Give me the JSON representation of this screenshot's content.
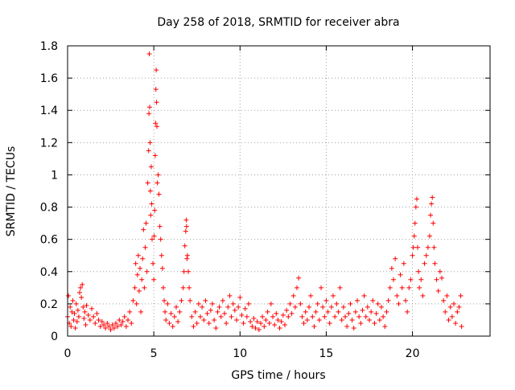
{
  "chart_data": {
    "type": "scatter",
    "title": "Day 258 of 2018, SRMTID for receiver abra",
    "xlabel": "GPS time / hours",
    "ylabel": "SRMTID / TECUs",
    "xlim": [
      0,
      24.5
    ],
    "ylim": [
      0,
      1.8
    ],
    "xticks": [
      0,
      5,
      10,
      15,
      20
    ],
    "xtick_labels": [
      "0",
      "5",
      "10",
      "15",
      "20"
    ],
    "yticks": [
      0,
      0.2,
      0.4,
      0.6,
      0.8,
      1.0,
      1.2,
      1.4,
      1.6,
      1.8
    ],
    "ytick_labels": [
      "0",
      "0.2",
      "0.4",
      "0.6",
      "0.8",
      "1",
      "1.2",
      "1.4",
      "1.6",
      "1.8"
    ],
    "grid": true,
    "marker": "+",
    "series": [
      {
        "name": "SRMTID",
        "color": "#ff0000",
        "points": [
          [
            0.0,
            0.12
          ],
          [
            0.05,
            0.25
          ],
          [
            0.1,
            0.08
          ],
          [
            0.15,
            0.18
          ],
          [
            0.2,
            0.06
          ],
          [
            0.25,
            0.15
          ],
          [
            0.3,
            0.22
          ],
          [
            0.35,
            0.1
          ],
          [
            0.4,
            0.14
          ],
          [
            0.45,
            0.05
          ],
          [
            0.5,
            0.2
          ],
          [
            0.55,
            0.09
          ],
          [
            0.6,
            0.16
          ],
          [
            0.65,
            0.12
          ],
          [
            0.7,
            0.27
          ],
          [
            0.75,
            0.3
          ],
          [
            0.8,
            0.24
          ],
          [
            0.85,
            0.32
          ],
          [
            0.9,
            0.18
          ],
          [
            0.95,
            0.11
          ],
          [
            1.0,
            0.15
          ],
          [
            1.05,
            0.07
          ],
          [
            1.1,
            0.19
          ],
          [
            1.2,
            0.13
          ],
          [
            1.3,
            0.1
          ],
          [
            1.4,
            0.17
          ],
          [
            1.5,
            0.12
          ],
          [
            1.6,
            0.08
          ],
          [
            1.7,
            0.14
          ],
          [
            1.8,
            0.1
          ],
          [
            1.9,
            0.06
          ],
          [
            2.0,
            0.09
          ],
          [
            2.1,
            0.07
          ],
          [
            2.2,
            0.05
          ],
          [
            2.3,
            0.08
          ],
          [
            2.4,
            0.06
          ],
          [
            2.5,
            0.04
          ],
          [
            2.6,
            0.07
          ],
          [
            2.7,
            0.05
          ],
          [
            2.8,
            0.08
          ],
          [
            2.9,
            0.06
          ],
          [
            3.0,
            0.1
          ],
          [
            3.1,
            0.07
          ],
          [
            3.2,
            0.09
          ],
          [
            3.3,
            0.12
          ],
          [
            3.4,
            0.06
          ],
          [
            3.5,
            0.1
          ],
          [
            3.6,
            0.15
          ],
          [
            3.7,
            0.08
          ],
          [
            3.8,
            0.22
          ],
          [
            3.9,
            0.3
          ],
          [
            3.95,
            0.45
          ],
          [
            4.0,
            0.2
          ],
          [
            4.05,
            0.38
          ],
          [
            4.1,
            0.5
          ],
          [
            4.15,
            0.28
          ],
          [
            4.2,
            0.42
          ],
          [
            4.25,
            0.15
          ],
          [
            4.3,
            0.35
          ],
          [
            4.35,
            0.48
          ],
          [
            4.4,
            0.66
          ],
          [
            4.45,
            0.3
          ],
          [
            4.5,
            0.55
          ],
          [
            4.55,
            0.7
          ],
          [
            4.6,
            0.4
          ],
          [
            4.65,
            0.95
          ],
          [
            4.7,
            1.15
          ],
          [
            4.72,
            1.38
          ],
          [
            4.74,
            1.75
          ],
          [
            4.76,
            1.42
          ],
          [
            4.78,
            1.2
          ],
          [
            4.8,
            0.9
          ],
          [
            4.82,
            0.75
          ],
          [
            4.85,
            1.05
          ],
          [
            4.88,
            0.82
          ],
          [
            4.9,
            0.6
          ],
          [
            4.95,
            0.45
          ],
          [
            5.0,
            0.35
          ],
          [
            5.02,
            0.62
          ],
          [
            5.05,
            0.78
          ],
          [
            5.08,
            1.12
          ],
          [
            5.1,
            1.32
          ],
          [
            5.12,
            1.53
          ],
          [
            5.14,
            1.65
          ],
          [
            5.16,
            1.45
          ],
          [
            5.18,
            1.3
          ],
          [
            5.2,
            0.95
          ],
          [
            5.25,
            1.0
          ],
          [
            5.3,
            0.88
          ],
          [
            5.35,
            0.68
          ],
          [
            5.4,
            0.6
          ],
          [
            5.45,
            0.5
          ],
          [
            5.5,
            0.42
          ],
          [
            5.55,
            0.3
          ],
          [
            5.6,
            0.22
          ],
          [
            5.65,
            0.15
          ],
          [
            5.7,
            0.1
          ],
          [
            5.8,
            0.2
          ],
          [
            5.9,
            0.08
          ],
          [
            6.0,
            0.14
          ],
          [
            6.1,
            0.06
          ],
          [
            6.2,
            0.12
          ],
          [
            6.3,
            0.18
          ],
          [
            6.4,
            0.09
          ],
          [
            6.5,
            0.15
          ],
          [
            6.6,
            0.22
          ],
          [
            6.7,
            0.3
          ],
          [
            6.75,
            0.4
          ],
          [
            6.8,
            0.56
          ],
          [
            6.85,
            0.65
          ],
          [
            6.88,
            0.72
          ],
          [
            6.9,
            0.68
          ],
          [
            6.92,
            0.48
          ],
          [
            6.95,
            0.5
          ],
          [
            7.0,
            0.4
          ],
          [
            7.05,
            0.3
          ],
          [
            7.1,
            0.22
          ],
          [
            7.2,
            0.12
          ],
          [
            7.3,
            0.06
          ],
          [
            7.4,
            0.15
          ],
          [
            7.5,
            0.08
          ],
          [
            7.6,
            0.2
          ],
          [
            7.7,
            0.12
          ],
          [
            7.8,
            0.18
          ],
          [
            7.9,
            0.1
          ],
          [
            8.0,
            0.22
          ],
          [
            8.1,
            0.14
          ],
          [
            8.2,
            0.08
          ],
          [
            8.3,
            0.16
          ],
          [
            8.4,
            0.2
          ],
          [
            8.5,
            0.1
          ],
          [
            8.6,
            0.05
          ],
          [
            8.7,
            0.15
          ],
          [
            8.8,
            0.18
          ],
          [
            8.9,
            0.12
          ],
          [
            9.0,
            0.22
          ],
          [
            9.1,
            0.14
          ],
          [
            9.2,
            0.08
          ],
          [
            9.3,
            0.18
          ],
          [
            9.4,
            0.25
          ],
          [
            9.5,
            0.12
          ],
          [
            9.6,
            0.2
          ],
          [
            9.7,
            0.16
          ],
          [
            9.8,
            0.1
          ],
          [
            9.9,
            0.18
          ],
          [
            10.0,
            0.24
          ],
          [
            10.1,
            0.13
          ],
          [
            10.2,
            0.08
          ],
          [
            10.3,
            0.17
          ],
          [
            10.4,
            0.12
          ],
          [
            10.5,
            0.2
          ],
          [
            10.6,
            0.09
          ],
          [
            10.7,
            0.06
          ],
          [
            10.8,
            0.11
          ],
          [
            10.9,
            0.05
          ],
          [
            11.0,
            0.09
          ],
          [
            11.1,
            0.04
          ],
          [
            11.2,
            0.08
          ],
          [
            11.3,
            0.12
          ],
          [
            11.4,
            0.06
          ],
          [
            11.5,
            0.1
          ],
          [
            11.6,
            0.15
          ],
          [
            11.7,
            0.08
          ],
          [
            11.8,
            0.2
          ],
          [
            11.9,
            0.12
          ],
          [
            12.0,
            0.07
          ],
          [
            12.1,
            0.14
          ],
          [
            12.2,
            0.1
          ],
          [
            12.3,
            0.05
          ],
          [
            12.4,
            0.09
          ],
          [
            12.5,
            0.13
          ],
          [
            12.6,
            0.07
          ],
          [
            12.7,
            0.16
          ],
          [
            12.8,
            0.12
          ],
          [
            12.9,
            0.2
          ],
          [
            13.0,
            0.14
          ],
          [
            13.1,
            0.25
          ],
          [
            13.2,
            0.18
          ],
          [
            13.3,
            0.3
          ],
          [
            13.4,
            0.36
          ],
          [
            13.5,
            0.2
          ],
          [
            13.6,
            0.12
          ],
          [
            13.7,
            0.08
          ],
          [
            13.8,
            0.15
          ],
          [
            13.9,
            0.1
          ],
          [
            14.0,
            0.18
          ],
          [
            14.1,
            0.25
          ],
          [
            14.2,
            0.12
          ],
          [
            14.3,
            0.06
          ],
          [
            14.4,
            0.15
          ],
          [
            14.5,
            0.2
          ],
          [
            14.6,
            0.1
          ],
          [
            14.7,
            0.3
          ],
          [
            14.8,
            0.18
          ],
          [
            14.9,
            0.12
          ],
          [
            15.0,
            0.22
          ],
          [
            15.1,
            0.15
          ],
          [
            15.2,
            0.08
          ],
          [
            15.3,
            0.18
          ],
          [
            15.4,
            0.25
          ],
          [
            15.5,
            0.12
          ],
          [
            15.6,
            0.2
          ],
          [
            15.7,
            0.15
          ],
          [
            15.8,
            0.3
          ],
          [
            15.9,
            0.1
          ],
          [
            16.0,
            0.18
          ],
          [
            16.1,
            0.12
          ],
          [
            16.2,
            0.06
          ],
          [
            16.3,
            0.14
          ],
          [
            16.4,
            0.2
          ],
          [
            16.5,
            0.1
          ],
          [
            16.6,
            0.05
          ],
          [
            16.7,
            0.15
          ],
          [
            16.8,
            0.22
          ],
          [
            16.9,
            0.12
          ],
          [
            17.0,
            0.08
          ],
          [
            17.1,
            0.16
          ],
          [
            17.2,
            0.25
          ],
          [
            17.3,
            0.12
          ],
          [
            17.4,
            0.18
          ],
          [
            17.5,
            0.1
          ],
          [
            17.6,
            0.15
          ],
          [
            17.7,
            0.22
          ],
          [
            17.8,
            0.08
          ],
          [
            17.9,
            0.14
          ],
          [
            18.0,
            0.2
          ],
          [
            18.1,
            0.1
          ],
          [
            18.2,
            0.18
          ],
          [
            18.3,
            0.12
          ],
          [
            18.4,
            0.06
          ],
          [
            18.5,
            0.15
          ],
          [
            18.6,
            0.22
          ],
          [
            18.7,
            0.3
          ],
          [
            18.8,
            0.42
          ],
          [
            18.9,
            0.35
          ],
          [
            19.0,
            0.48
          ],
          [
            19.1,
            0.25
          ],
          [
            19.2,
            0.2
          ],
          [
            19.3,
            0.38
          ],
          [
            19.4,
            0.3
          ],
          [
            19.5,
            0.45
          ],
          [
            19.6,
            0.22
          ],
          [
            19.7,
            0.15
          ],
          [
            19.8,
            0.3
          ],
          [
            19.9,
            0.35
          ],
          [
            20.0,
            0.5
          ],
          [
            20.05,
            0.55
          ],
          [
            20.1,
            0.62
          ],
          [
            20.15,
            0.7
          ],
          [
            20.2,
            0.8
          ],
          [
            20.25,
            0.85
          ],
          [
            20.3,
            0.55
          ],
          [
            20.35,
            0.4
          ],
          [
            20.4,
            0.3
          ],
          [
            20.5,
            0.35
          ],
          [
            20.6,
            0.25
          ],
          [
            20.7,
            0.45
          ],
          [
            20.8,
            0.5
          ],
          [
            20.9,
            0.55
          ],
          [
            21.0,
            0.62
          ],
          [
            21.05,
            0.75
          ],
          [
            21.1,
            0.82
          ],
          [
            21.15,
            0.86
          ],
          [
            21.2,
            0.7
          ],
          [
            21.25,
            0.55
          ],
          [
            21.3,
            0.45
          ],
          [
            21.4,
            0.35
          ],
          [
            21.5,
            0.28
          ],
          [
            21.6,
            0.4
          ],
          [
            21.7,
            0.36
          ],
          [
            21.8,
            0.22
          ],
          [
            21.9,
            0.15
          ],
          [
            22.0,
            0.25
          ],
          [
            22.1,
            0.1
          ],
          [
            22.2,
            0.18
          ],
          [
            22.3,
            0.12
          ],
          [
            22.4,
            0.2
          ],
          [
            22.5,
            0.08
          ],
          [
            22.6,
            0.15
          ],
          [
            22.7,
            0.18
          ],
          [
            22.8,
            0.25
          ],
          [
            22.85,
            0.06
          ]
        ]
      }
    ]
  }
}
